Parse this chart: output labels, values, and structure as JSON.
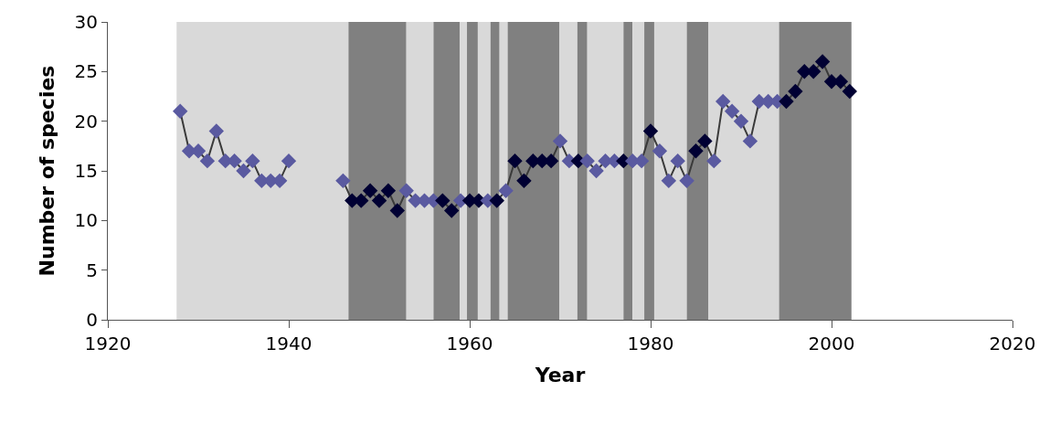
{
  "chart_data": {
    "type": "line",
    "xlabel": "Year",
    "ylabel": "Number of species",
    "xlim": [
      1920,
      2020
    ],
    "xticks": [
      1920,
      1940,
      1960,
      1980,
      2000,
      2020
    ],
    "ylim": [
      0,
      30
    ],
    "yticks": [
      0,
      5,
      10,
      15,
      20,
      25,
      30
    ],
    "grid": false,
    "marker": "diamond",
    "line_style": "solid",
    "x": [
      1928,
      1929,
      1930,
      1931,
      1932,
      1933,
      1934,
      1935,
      1936,
      1937,
      1938,
      1939,
      1940,
      1941,
      1942,
      1943,
      1944,
      1945,
      1946,
      1947,
      1948,
      1949,
      1950,
      1951,
      1952,
      1953,
      1954,
      1955,
      1956,
      1957,
      1958,
      1959,
      1960,
      1961,
      1962,
      1963,
      1964,
      1965,
      1966,
      1967,
      1968,
      1969,
      1970,
      1971,
      1972,
      1973,
      1974,
      1975,
      1976,
      1977,
      1978,
      1979,
      1980,
      1981,
      1982,
      1983,
      1984,
      1985,
      1986,
      1987,
      1988,
      1989,
      1990,
      1991,
      1992,
      1993,
      1994,
      1995,
      1996,
      1997,
      1998,
      1999,
      2000,
      2001,
      2002
    ],
    "series": [
      {
        "color": "#3a3a3a",
        "values": [
          21,
          17,
          17,
          16,
          19,
          16,
          16,
          15,
          16,
          14,
          14,
          14,
          16,
          null,
          null,
          null,
          null,
          null,
          14,
          12,
          12,
          13,
          12,
          13,
          11,
          13,
          12,
          12,
          12,
          12,
          11,
          12,
          12,
          12,
          12,
          12,
          13,
          16,
          14,
          16,
          16,
          16,
          18,
          16,
          16,
          16,
          15,
          16,
          16,
          16,
          16,
          16,
          19,
          17,
          14,
          16,
          14,
          17,
          18,
          16,
          22,
          21,
          20,
          18,
          22,
          22,
          22,
          22,
          23,
          25,
          25,
          26,
          24,
          24,
          23
        ],
        "colors": [
          "#5a5aa0",
          "#5a5aa0",
          "#5a5aa0",
          "#5a5aa0",
          "#5a5aa0",
          "#5a5aa0",
          "#5a5aa0",
          "#5a5aa0",
          "#5a5aa0",
          "#5a5aa0",
          "#5a5aa0",
          "#5a5aa0",
          "#5a5aa0",
          "#5a5aa0",
          "#5a5aa0",
          "#5a5aa0",
          "#5a5aa0",
          "#5a5aa0",
          "#5a5aa0",
          "#000033",
          "#000033",
          "#000033",
          "#000033",
          "#000033",
          "#000033",
          "#5a5aa0",
          "#5a5aa0",
          "#5a5aa0",
          "#5a5aa0",
          "#000033",
          "#000033",
          "#5a5aa0",
          "#000033",
          "#000033",
          "#5a5aa0",
          "#000033",
          "#5a5aa0",
          "#000033",
          "#000033",
          "#000033",
          "#000033",
          "#000033",
          "#5a5aa0",
          "#5a5aa0",
          "#000033",
          "#5a5aa0",
          "#5a5aa0",
          "#5a5aa0",
          "#5a5aa0",
          "#000033",
          "#5a5aa0",
          "#5a5aa0",
          "#000033",
          "#5a5aa0",
          "#5a5aa0",
          "#5a5aa0",
          "#5a5aa0",
          "#000033",
          "#000033",
          "#5a5aa0",
          "#5a5aa0",
          "#5a5aa0",
          "#5a5aa0",
          "#5a5aa0",
          "#5a5aa0",
          "#5a5aa0",
          "#5a5aa0",
          "#000033",
          "#000033",
          "#000033",
          "#000033",
          "#000033",
          "#000033",
          "#000033",
          "#000033"
        ]
      }
    ],
    "bands": [
      {
        "axis": "x",
        "from": 1927.6,
        "to": 1946.6,
        "color": "#d9d9d9"
      },
      {
        "axis": "x",
        "from": 1946.6,
        "to": 1953.0,
        "color": "#808080"
      },
      {
        "axis": "x",
        "from": 1953.0,
        "to": 1956.0,
        "color": "#d9d9d9"
      },
      {
        "axis": "x",
        "from": 1956.0,
        "to": 1958.9,
        "color": "#808080"
      },
      {
        "axis": "x",
        "from": 1958.9,
        "to": 1959.7,
        "color": "#d9d9d9"
      },
      {
        "axis": "x",
        "from": 1959.7,
        "to": 1960.9,
        "color": "#808080"
      },
      {
        "axis": "x",
        "from": 1960.9,
        "to": 1962.3,
        "color": "#d9d9d9"
      },
      {
        "axis": "x",
        "from": 1962.3,
        "to": 1963.3,
        "color": "#808080"
      },
      {
        "axis": "x",
        "from": 1963.3,
        "to": 1964.2,
        "color": "#d9d9d9"
      },
      {
        "axis": "x",
        "from": 1964.2,
        "to": 1969.9,
        "color": "#808080"
      },
      {
        "axis": "x",
        "from": 1969.9,
        "to": 1971.9,
        "color": "#d9d9d9"
      },
      {
        "axis": "x",
        "from": 1971.9,
        "to": 1973.0,
        "color": "#808080"
      },
      {
        "axis": "x",
        "from": 1973.0,
        "to": 1977.0,
        "color": "#d9d9d9"
      },
      {
        "axis": "x",
        "from": 1977.0,
        "to": 1978.0,
        "color": "#808080"
      },
      {
        "axis": "x",
        "from": 1978.0,
        "to": 1979.3,
        "color": "#d9d9d9"
      },
      {
        "axis": "x",
        "from": 1979.3,
        "to": 1980.4,
        "color": "#808080"
      },
      {
        "axis": "x",
        "from": 1980.4,
        "to": 1984.0,
        "color": "#d9d9d9"
      },
      {
        "axis": "x",
        "from": 1984.0,
        "to": 1986.4,
        "color": "#808080"
      },
      {
        "axis": "x",
        "from": 1986.4,
        "to": 1994.2,
        "color": "#d9d9d9"
      },
      {
        "axis": "x",
        "from": 1994.2,
        "to": 2002.2,
        "color": "#808080"
      }
    ]
  }
}
